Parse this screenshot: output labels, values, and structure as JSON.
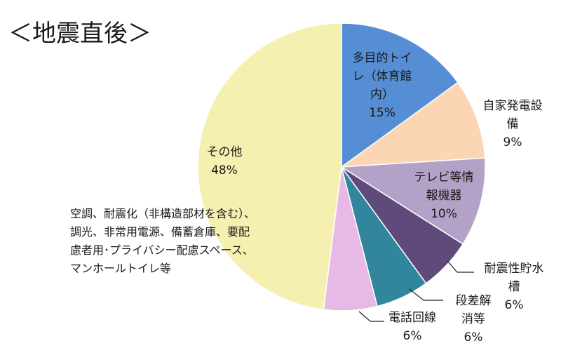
{
  "title": "＜地震直後＞",
  "chart_data": {
    "type": "pie",
    "start_angle_deg": 0,
    "direction": "clockwise",
    "slices": [
      {
        "label_lines": [
          "多目的トイ",
          "レ（体育館",
          "内）"
        ],
        "value_label": "15%",
        "value": 15,
        "color": "#558ed5"
      },
      {
        "label_lines": [
          "自家発電設",
          "備"
        ],
        "value_label": "9%",
        "value": 9,
        "color": "#fcd5b5"
      },
      {
        "label_lines": [
          "テレビ等情",
          "報機器"
        ],
        "value_label": "10%",
        "value": 10,
        "color": "#b3a2c7"
      },
      {
        "label_lines": [
          "耐震性貯水",
          "槽"
        ],
        "value_label": "6%",
        "value": 6,
        "color": "#604a7b"
      },
      {
        "label_lines": [
          "段差解",
          "消等"
        ],
        "value_label": "6%",
        "value": 6,
        "color": "#31859c"
      },
      {
        "label_lines": [
          "電話回線"
        ],
        "value_label": "6%",
        "value": 6,
        "color": "#e6b9e6"
      },
      {
        "label_lines": [
          "その他"
        ],
        "value_label": "48%",
        "value": 48,
        "color": "#f5f0b0"
      }
    ],
    "annotation_lines": [
      "空調、耐震化（非構造部材を含む）、",
      "調光、非常用電源、備蓄倉庫、要配",
      "慮者用･プライバシー配慮スペース、",
      "マンホールトイレ等"
    ]
  }
}
